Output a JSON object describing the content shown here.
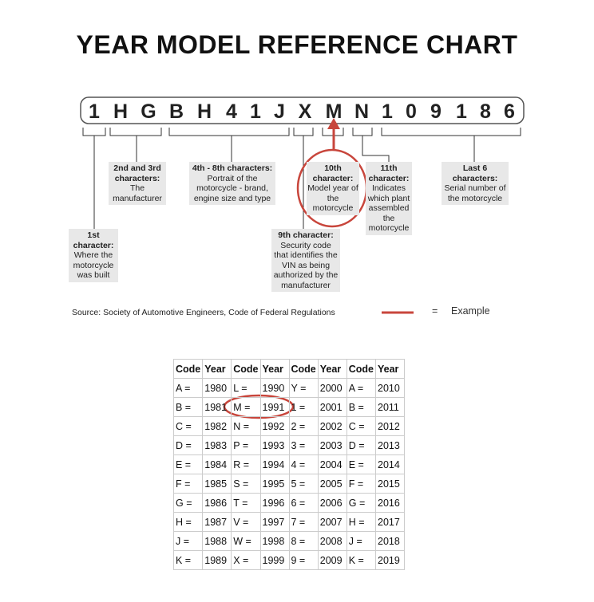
{
  "title": "YEAR MODEL REFERENCE CHART",
  "vin": [
    "1",
    "H",
    "G",
    "B",
    "H",
    "4",
    "1",
    "J",
    "X",
    "M",
    "N",
    "1",
    "0",
    "9",
    "1",
    "8",
    "6"
  ],
  "annotations": [
    {
      "heading": "1st character:",
      "text": "Where the motorcycle was built"
    },
    {
      "heading": "2nd and 3rd characters:",
      "text": "The manufacturer"
    },
    {
      "heading": "4th - 8th characters:",
      "text": "Portrait of the motorcycle - brand, engine size and type"
    },
    {
      "heading": "9th character:",
      "text": "Security code that identifies the VIN as being authorized by the manufacturer"
    },
    {
      "heading": "10th character:",
      "text": "Model year of the motorcycle"
    },
    {
      "heading": "11th character:",
      "text": "Indicates which plant assembled the motorcycle"
    },
    {
      "heading": "Last 6 characters:",
      "text": "Serial number of the motorcycle"
    }
  ],
  "source": "Source:  Society of Automotive Engineers, Code of Federal Regulations",
  "legend": {
    "symbol": "=",
    "label": "Example"
  },
  "table": {
    "header": [
      "Code",
      "Year",
      "Code",
      "Year",
      "Code",
      "Year",
      "Code",
      "Year"
    ],
    "rows": [
      [
        "A =",
        "1980",
        "L =",
        "1990",
        "Y =",
        "2000",
        "A =",
        "2010"
      ],
      [
        "B =",
        "1981",
        "M =",
        "1991",
        "1 =",
        "2001",
        "B =",
        "2011"
      ],
      [
        "C =",
        "1982",
        "N =",
        "1992",
        "2 =",
        "2002",
        "C =",
        "2012"
      ],
      [
        "D =",
        "1983",
        "P =",
        "1993",
        "3 =",
        "2003",
        "D =",
        "2013"
      ],
      [
        "E =",
        "1984",
        "R =",
        "1994",
        "4 =",
        "2004",
        "E =",
        "2014"
      ],
      [
        "F =",
        "1985",
        "S =",
        "1995",
        "5 =",
        "2005",
        "F =",
        "2015"
      ],
      [
        "G =",
        "1986",
        "T =",
        "1996",
        "6 =",
        "2006",
        "G =",
        "2016"
      ],
      [
        "H =",
        "1987",
        "V =",
        "1997",
        "7 =",
        "2007",
        "H =",
        "2017"
      ],
      [
        "J =",
        "1988",
        "W =",
        "1998",
        "8 =",
        "2008",
        "J =",
        "2018"
      ],
      [
        "K =",
        "1989",
        "X =",
        "1999",
        "9 =",
        "2009",
        "K =",
        "2019"
      ]
    ]
  }
}
